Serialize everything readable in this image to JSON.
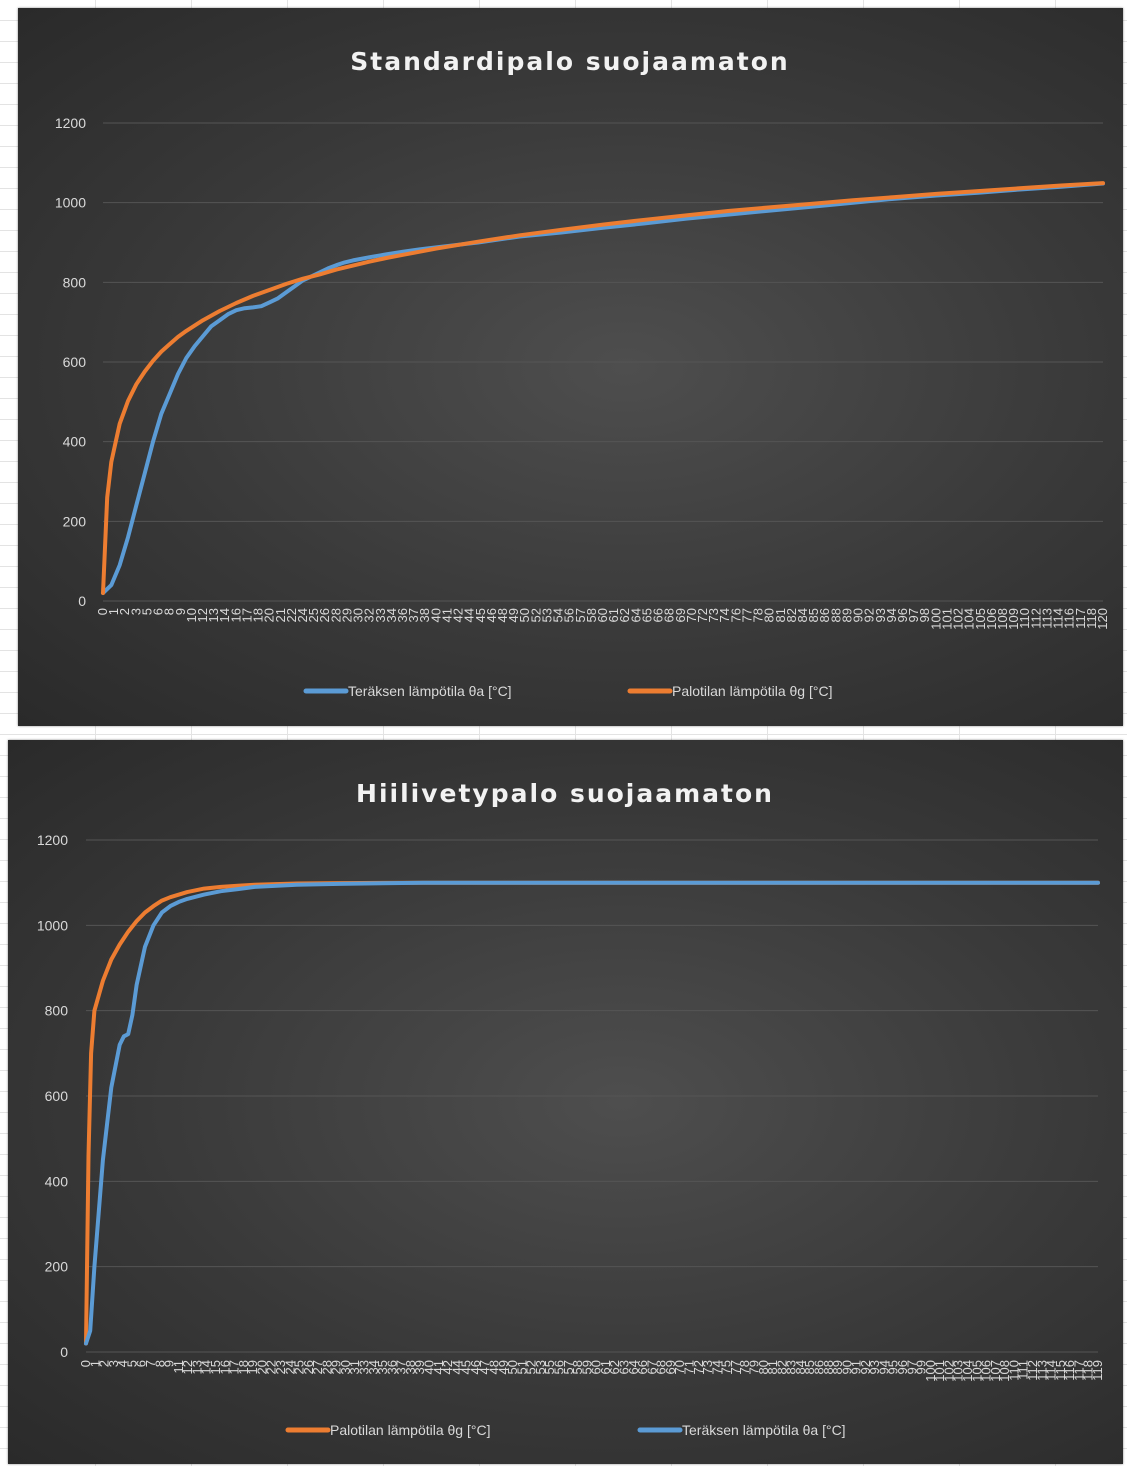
{
  "chart_data": [
    {
      "type": "line",
      "title": "Standardipalo suojaamaton",
      "ylim": [
        0,
        1200
      ],
      "yticks": [
        0,
        200,
        400,
        600,
        800,
        1000,
        1200
      ],
      "xlim": [
        0,
        120
      ],
      "xticks": [
        "0",
        "1",
        "2",
        "3",
        "5",
        "6",
        "8",
        "9",
        "10",
        "12",
        "13",
        "14",
        "16",
        "17",
        "18",
        "20",
        "21",
        "22",
        "24",
        "25",
        "26",
        "28",
        "29",
        "30",
        "32",
        "33",
        "34",
        "36",
        "37",
        "38",
        "40",
        "41",
        "42",
        "44",
        "45",
        "46",
        "48",
        "49",
        "50",
        "52",
        "53",
        "54",
        "56",
        "57",
        "58",
        "60",
        "61",
        "62",
        "64",
        "65",
        "66",
        "68",
        "69",
        "70",
        "72",
        "73",
        "74",
        "76",
        "77",
        "78",
        "80",
        "81",
        "82",
        "84",
        "85",
        "86",
        "88",
        "89",
        "90",
        "92",
        "93",
        "94",
        "96",
        "97",
        "98",
        "100",
        "101",
        "102",
        "104",
        "105",
        "106",
        "108",
        "109",
        "110",
        "112",
        "113",
        "114",
        "116",
        "117",
        "118",
        "120"
      ],
      "grid": true,
      "legend": "bottom",
      "series": [
        {
          "name": "Teräksen lämpötila θa [°C]",
          "color": "#5b9bd5",
          "x": [
            0,
            1,
            2,
            3,
            4,
            5,
            6,
            7,
            8,
            9,
            10,
            11,
            12,
            13,
            14,
            15,
            16,
            17,
            18,
            19,
            20,
            21,
            22,
            23,
            24,
            25,
            26,
            27,
            28,
            29,
            30,
            32,
            34,
            36,
            38,
            40,
            45,
            50,
            55,
            60,
            65,
            70,
            75,
            80,
            85,
            90,
            95,
            100,
            105,
            110,
            115,
            120
          ],
          "y": [
            20,
            40,
            90,
            160,
            240,
            320,
            400,
            470,
            520,
            570,
            610,
            640,
            665,
            690,
            705,
            720,
            730,
            735,
            737,
            740,
            750,
            760,
            775,
            790,
            805,
            815,
            825,
            835,
            843,
            850,
            855,
            863,
            870,
            877,
            883,
            888,
            900,
            915,
            925,
            937,
            948,
            960,
            970,
            980,
            990,
            1000,
            1010,
            1018,
            1025,
            1033,
            1040,
            1048
          ]
        },
        {
          "name": "Palotilan lämpötila θg  [°C]",
          "color": "#ed7d31",
          "x": [
            0,
            0.5,
            1,
            2,
            3,
            4,
            5,
            6,
            7,
            8,
            9,
            10,
            12,
            14,
            16,
            18,
            20,
            22,
            24,
            26,
            28,
            30,
            32,
            34,
            36,
            38,
            40,
            45,
            50,
            55,
            60,
            65,
            70,
            75,
            80,
            85,
            90,
            95,
            100,
            105,
            110,
            115,
            120
          ],
          "y": [
            20,
            260,
            349,
            445,
            502,
            544,
            576,
            603,
            626,
            645,
            663,
            678,
            705,
            728,
            748,
            766,
            781,
            796,
            809,
            820,
            832,
            842,
            852,
            861,
            869,
            877,
            885,
            902,
            918,
            932,
            945,
            957,
            968,
            979,
            988,
            997,
            1006,
            1014,
            1022,
            1029,
            1036,
            1043,
            1049
          ]
        }
      ]
    },
    {
      "type": "line",
      "title": "Hiilivetypalo suojaamaton",
      "ylim": [
        0,
        1200
      ],
      "yticks": [
        0,
        200,
        400,
        600,
        800,
        1000,
        1200
      ],
      "xlim": [
        0,
        120
      ],
      "xticks": [
        "0",
        "1",
        "2",
        "3",
        "4",
        "5",
        "6",
        "7",
        "8",
        "9",
        "11",
        "12",
        "13",
        "14",
        "15",
        "16",
        "17",
        "18",
        "19",
        "20",
        "22",
        "23",
        "24",
        "25",
        "26",
        "27",
        "28",
        "29",
        "30",
        "31",
        "33",
        "34",
        "35",
        "36",
        "37",
        "38",
        "39",
        "40",
        "41",
        "42",
        "44",
        "45",
        "46",
        "47",
        "48",
        "49",
        "50",
        "51",
        "52",
        "53",
        "55",
        "56",
        "57",
        "58",
        "59",
        "60",
        "61",
        "62",
        "63",
        "64",
        "66",
        "67",
        "68",
        "69",
        "70",
        "71",
        "72",
        "73",
        "74",
        "75",
        "77",
        "78",
        "79",
        "80",
        "81",
        "82",
        "83",
        "84",
        "85",
        "86",
        "88",
        "89",
        "90",
        "91",
        "92",
        "93",
        "94",
        "95",
        "96",
        "97",
        "99",
        "100",
        "101",
        "102",
        "103",
        "104",
        "105",
        "106",
        "107",
        "108",
        "110",
        "111",
        "112",
        "113",
        "114",
        "115",
        "116",
        "117",
        "118",
        "119"
      ],
      "grid": true,
      "legend": "bottom",
      "series": [
        {
          "name": "Palotilan lämpötila θg  [°C]",
          "color": "#ed7d31",
          "x": [
            0,
            0.3,
            0.6,
            1,
            2,
            3,
            4,
            5,
            6,
            7,
            8,
            9,
            10,
            12,
            14,
            16,
            18,
            20,
            25,
            30,
            40,
            60,
            80,
            100,
            120
          ],
          "y": [
            20,
            460,
            700,
            800,
            870,
            920,
            955,
            985,
            1010,
            1030,
            1045,
            1058,
            1066,
            1078,
            1086,
            1090,
            1093,
            1095,
            1098,
            1099,
            1100,
            1100,
            1100,
            1100,
            1100
          ]
        },
        {
          "name": "Teräksen lämpötila θa [°C]",
          "color": "#5b9bd5",
          "x": [
            0,
            0.5,
            1,
            2,
            3,
            4,
            4.5,
            5,
            5.5,
            6,
            7,
            8,
            9,
            10,
            11,
            12,
            14,
            16,
            18,
            20,
            25,
            30,
            40,
            60,
            80,
            100,
            120
          ],
          "y": [
            20,
            50,
            200,
            450,
            620,
            720,
            740,
            745,
            790,
            860,
            950,
            1000,
            1030,
            1045,
            1055,
            1062,
            1072,
            1080,
            1085,
            1090,
            1095,
            1097,
            1100,
            1100,
            1100,
            1100,
            1100
          ]
        }
      ]
    }
  ]
}
